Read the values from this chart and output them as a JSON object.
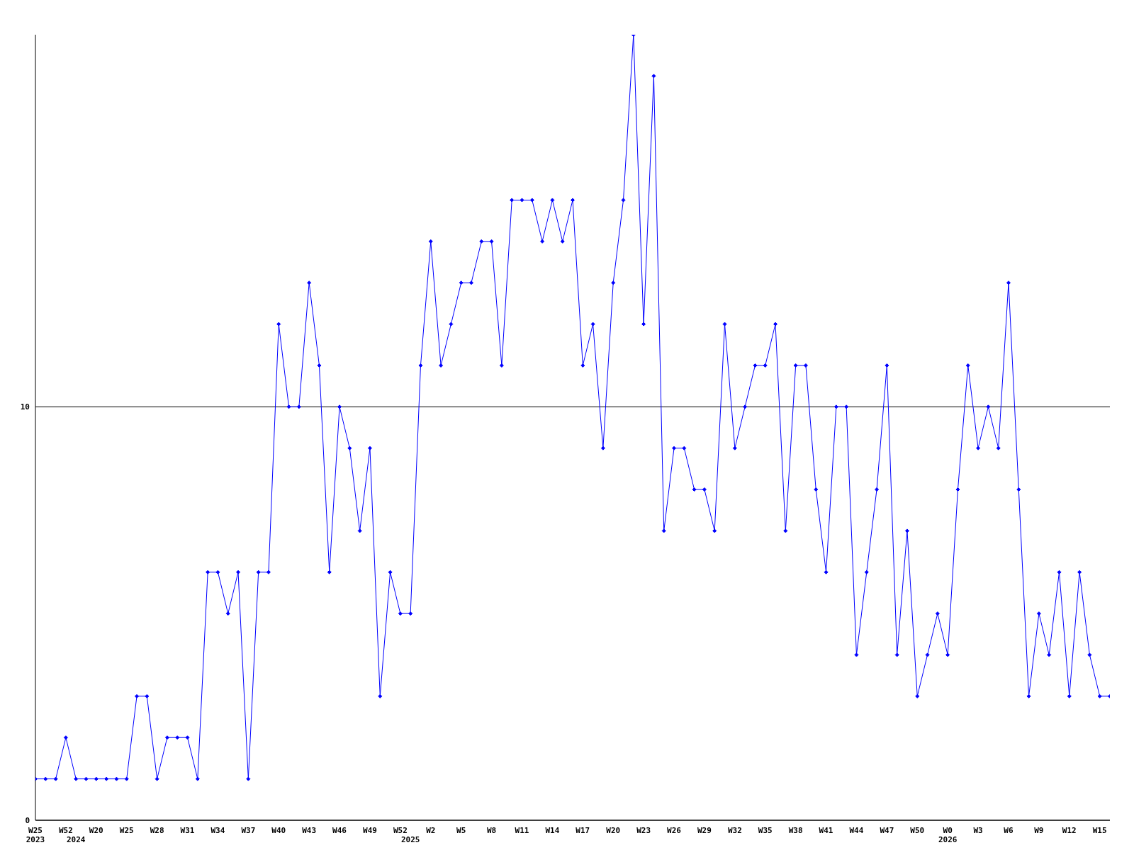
{
  "chart_data": {
    "type": "line",
    "categories": [
      "W25\n2023",
      null,
      null,
      "W52",
      "\n2024",
      null,
      "W20",
      null,
      null,
      "W25",
      null,
      null,
      "W28",
      null,
      null,
      "W31",
      null,
      null,
      "W34",
      null,
      null,
      "W37",
      null,
      null,
      "W40",
      null,
      null,
      "W43",
      null,
      null,
      "W46",
      null,
      null,
      "W49",
      null,
      null,
      "W52",
      "\n2025",
      null,
      "W2",
      null,
      null,
      "W5",
      null,
      null,
      "W8",
      null,
      null,
      "W11",
      null,
      null,
      "W14",
      null,
      null,
      "W17",
      null,
      null,
      "W20",
      null,
      null,
      "W23",
      null,
      null,
      "W26",
      null,
      null,
      "W29",
      null,
      null,
      "W32",
      null,
      null,
      "W35",
      null,
      null,
      "W38",
      null,
      null,
      "W41",
      null,
      null,
      "W44",
      null,
      null,
      "W47",
      null,
      null,
      "W50",
      null,
      null,
      "W0\n2026",
      null,
      null,
      "W3",
      null,
      null,
      "W6",
      null,
      null,
      "W9",
      null,
      null,
      "W12",
      null,
      null,
      "W15",
      null
    ],
    "series": [
      {
        "color": "#0000ff",
        "values": [
          1,
          1,
          1,
          2,
          1,
          1,
          1,
          1,
          1,
          1,
          3,
          3,
          1,
          2,
          2,
          2,
          1,
          6,
          6,
          5,
          6,
          1,
          6,
          6,
          12,
          10,
          10,
          13,
          11,
          6,
          10,
          9,
          7,
          9,
          3,
          6,
          5,
          5,
          11,
          14,
          11,
          12,
          13,
          13,
          14,
          14,
          11,
          15,
          15,
          15,
          14,
          15,
          14,
          15,
          11,
          12,
          9,
          13,
          15,
          19,
          12,
          18,
          7,
          9,
          9,
          8,
          8,
          7,
          12,
          9,
          10,
          11,
          11,
          12,
          7,
          11,
          11,
          8,
          6,
          10,
          10,
          4,
          6,
          8,
          11,
          4,
          7,
          3,
          4,
          5,
          4,
          8,
          11,
          9,
          10,
          9,
          13,
          8,
          3,
          5,
          4,
          6,
          3,
          6,
          4,
          3,
          3
        ]
      }
    ],
    "ylim": [
      0,
      19
    ],
    "yticks": [
      0,
      10
    ],
    "grid": "y",
    "marker": "diamond",
    "line_style": "solid"
  }
}
